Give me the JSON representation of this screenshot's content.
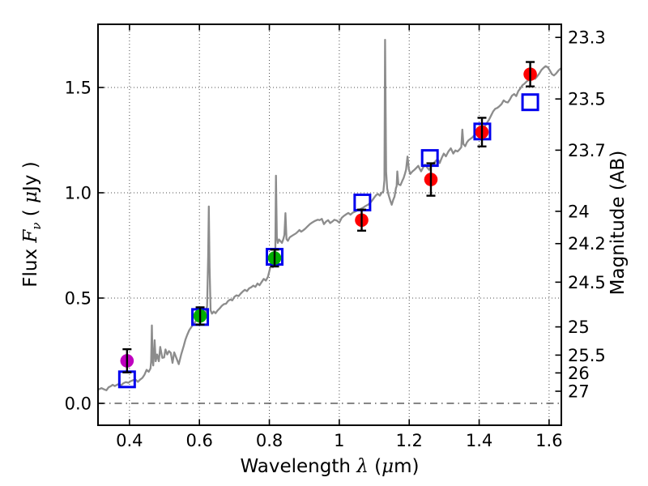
{
  "labels": {
    "x_prefix": "Wavelength ",
    "x_lambda": "λ",
    "x_open": " (",
    "x_mu": "μ",
    "x_close": "m)",
    "y_flux_prefix": "Flux ",
    "y_flux_F": "F",
    "y_flux_nu": "ν",
    "y_flux_open": " ( ",
    "y_flux_mu": "μ",
    "y_flux_close": "Jy )",
    "y_right": "Magnitude (AB)"
  },
  "colors": {
    "spectrum": "#8C8C8C",
    "model_square": "#0000EE",
    "errorbar": "#000000",
    "frame": "#000000",
    "grid": "#4D4D4D"
  },
  "chart_data": {
    "type": "line",
    "title": "",
    "xlabel": "Wavelength λ (μm)",
    "ylabel_left": "Flux Fν (μJy)",
    "ylabel_right": "Magnitude (AB)",
    "xlim": [
      0.31,
      1.635
    ],
    "ylim": [
      -0.104,
      1.8
    ],
    "grid": true,
    "x_ticks": [
      0.4,
      0.6,
      0.8,
      1,
      1.2,
      1.4,
      1.6
    ],
    "x_tick_labels": [
      "0.4",
      "0.6",
      "0.8",
      "1",
      "1.2",
      "1.4",
      "1.6"
    ],
    "y_ticks_flux": [
      0.0,
      0.5,
      1.0,
      1.5
    ],
    "y_tick_labels_flux": [
      "0.0",
      "0.5",
      "1.0",
      "1.5"
    ],
    "mag_ticks": [
      23.3,
      23.5,
      23.7,
      24,
      24.2,
      24.5,
      25,
      25.5,
      26,
      27
    ],
    "mag_tick_labels": [
      "23.3",
      "23.5",
      "23.7",
      "24",
      "24.2",
      "24.5",
      "25",
      "25.5",
      "26",
      "27"
    ],
    "mag_zeropoint_uJy": 23.9,
    "zero_flux_line": true,
    "series": [
      {
        "name": "model-spectrum",
        "type": "line",
        "color": "#8C8C8C",
        "points": [
          [
            0.31,
            0.065
          ],
          [
            0.32,
            0.072
          ],
          [
            0.328,
            0.066
          ],
          [
            0.334,
            0.062
          ],
          [
            0.34,
            0.076
          ],
          [
            0.347,
            0.082
          ],
          [
            0.352,
            0.088
          ],
          [
            0.358,
            0.082
          ],
          [
            0.364,
            0.088
          ],
          [
            0.37,
            0.092
          ],
          [
            0.376,
            0.086
          ],
          [
            0.383,
            0.096
          ],
          [
            0.39,
            0.101
          ],
          [
            0.397,
            0.098
          ],
          [
            0.403,
            0.105
          ],
          [
            0.41,
            0.11
          ],
          [
            0.417,
            0.113
          ],
          [
            0.424,
            0.102
          ],
          [
            0.43,
            0.112
          ],
          [
            0.437,
            0.121
          ],
          [
            0.443,
            0.136
          ],
          [
            0.449,
            0.159
          ],
          [
            0.455,
            0.15
          ],
          [
            0.46,
            0.166
          ],
          [
            0.462,
            0.2
          ],
          [
            0.464,
            0.37
          ],
          [
            0.466,
            0.21
          ],
          [
            0.468,
            0.18
          ],
          [
            0.47,
            0.24
          ],
          [
            0.472,
            0.3
          ],
          [
            0.475,
            0.2
          ],
          [
            0.479,
            0.232
          ],
          [
            0.484,
            0.2
          ],
          [
            0.488,
            0.268
          ],
          [
            0.494,
            0.216
          ],
          [
            0.499,
            0.218
          ],
          [
            0.503,
            0.256
          ],
          [
            0.508,
            0.232
          ],
          [
            0.513,
            0.248
          ],
          [
            0.518,
            0.24
          ],
          [
            0.523,
            0.192
          ],
          [
            0.528,
            0.242
          ],
          [
            0.534,
            0.216
          ],
          [
            0.541,
            0.186
          ],
          [
            0.548,
            0.232
          ],
          [
            0.555,
            0.272
          ],
          [
            0.56,
            0.302
          ],
          [
            0.565,
            0.325
          ],
          [
            0.571,
            0.348
          ],
          [
            0.578,
            0.365
          ],
          [
            0.585,
            0.38
          ],
          [
            0.59,
            0.392
          ],
          [
            0.595,
            0.399
          ],
          [
            0.6,
            0.408
          ],
          [
            0.606,
            0.413
          ],
          [
            0.612,
            0.416
          ],
          [
            0.618,
            0.431
          ],
          [
            0.622,
            0.462
          ],
          [
            0.625,
            0.7
          ],
          [
            0.627,
            0.935
          ],
          [
            0.629,
            0.65
          ],
          [
            0.632,
            0.442
          ],
          [
            0.636,
            0.426
          ],
          [
            0.641,
            0.436
          ],
          [
            0.646,
            0.428
          ],
          [
            0.652,
            0.441
          ],
          [
            0.658,
            0.451
          ],
          [
            0.664,
            0.463
          ],
          [
            0.67,
            0.471
          ],
          [
            0.676,
            0.473
          ],
          [
            0.682,
            0.486
          ],
          [
            0.688,
            0.493
          ],
          [
            0.694,
            0.489
          ],
          [
            0.7,
            0.506
          ],
          [
            0.706,
            0.513
          ],
          [
            0.712,
            0.509
          ],
          [
            0.718,
            0.521
          ],
          [
            0.724,
            0.531
          ],
          [
            0.73,
            0.539
          ],
          [
            0.736,
            0.533
          ],
          [
            0.742,
            0.546
          ],
          [
            0.748,
            0.551
          ],
          [
            0.754,
            0.559
          ],
          [
            0.76,
            0.553
          ],
          [
            0.766,
            0.569
          ],
          [
            0.772,
            0.561
          ],
          [
            0.778,
            0.576
          ],
          [
            0.784,
            0.591
          ],
          [
            0.79,
            0.583
          ],
          [
            0.796,
            0.601
          ],
          [
            0.802,
            0.641
          ],
          [
            0.806,
            0.656
          ],
          [
            0.81,
            0.646
          ],
          [
            0.814,
            0.667
          ],
          [
            0.817,
            0.72
          ],
          [
            0.819,
            1.081
          ],
          [
            0.8215,
            0.79
          ],
          [
            0.824,
            0.762
          ],
          [
            0.828,
            0.778
          ],
          [
            0.832,
            0.77
          ],
          [
            0.836,
            0.762
          ],
          [
            0.84,
            0.78
          ],
          [
            0.843,
            0.8
          ],
          [
            0.846,
            0.903
          ],
          [
            0.849,
            0.78
          ],
          [
            0.853,
            0.772
          ],
          [
            0.858,
            0.788
          ],
          [
            0.864,
            0.795
          ],
          [
            0.87,
            0.801
          ],
          [
            0.876,
            0.807
          ],
          [
            0.882,
            0.816
          ],
          [
            0.886,
            0.823
          ],
          [
            0.891,
            0.815
          ],
          [
            0.897,
            0.822
          ],
          [
            0.903,
            0.83
          ],
          [
            0.909,
            0.84
          ],
          [
            0.916,
            0.851
          ],
          [
            0.923,
            0.859
          ],
          [
            0.93,
            0.866
          ],
          [
            0.938,
            0.872
          ],
          [
            0.944,
            0.87
          ],
          [
            0.95,
            0.876
          ],
          [
            0.956,
            0.851
          ],
          [
            0.962,
            0.863
          ],
          [
            0.968,
            0.87
          ],
          [
            0.974,
            0.856
          ],
          [
            0.98,
            0.863
          ],
          [
            0.986,
            0.872
          ],
          [
            0.993,
            0.868
          ],
          [
            1.0,
            0.858
          ],
          [
            1.007,
            0.881
          ],
          [
            1.014,
            0.891
          ],
          [
            1.02,
            0.898
          ],
          [
            1.026,
            0.904
          ],
          [
            1.032,
            0.896
          ],
          [
            1.039,
            0.906
          ],
          [
            1.045,
            0.91
          ],
          [
            1.052,
            0.916
          ],
          [
            1.06,
            0.922
          ],
          [
            1.068,
            0.929
          ],
          [
            1.076,
            0.938
          ],
          [
            1.083,
            0.944
          ],
          [
            1.09,
            0.955
          ],
          [
            1.096,
            0.968
          ],
          [
            1.101,
            0.98
          ],
          [
            1.106,
            0.99
          ],
          [
            1.111,
            0.994
          ],
          [
            1.116,
            0.986
          ],
          [
            1.121,
            0.999
          ],
          [
            1.126,
            1.006
          ],
          [
            1.129,
            1.06
          ],
          [
            1.131,
            1.726
          ],
          [
            1.134,
            1.1
          ],
          [
            1.137,
            1.02
          ],
          [
            1.141,
            0.99
          ],
          [
            1.146,
            0.962
          ],
          [
            1.15,
            0.943
          ],
          [
            1.154,
            0.966
          ],
          [
            1.158,
            0.982
          ],
          [
            1.162,
            1.022
          ],
          [
            1.164,
            1.032
          ],
          [
            1.166,
            1.101
          ],
          [
            1.169,
            1.041
          ],
          [
            1.175,
            1.036
          ],
          [
            1.18,
            1.056
          ],
          [
            1.184,
            1.07
          ],
          [
            1.188,
            1.091
          ],
          [
            1.191,
            1.109
          ],
          [
            1.195,
            1.172
          ],
          [
            1.199,
            1.111
          ],
          [
            1.203,
            1.089
          ],
          [
            1.209,
            1.101
          ],
          [
            1.215,
            1.109
          ],
          [
            1.221,
            1.119
          ],
          [
            1.226,
            1.128
          ],
          [
            1.23,
            1.113
          ],
          [
            1.234,
            1.102
          ],
          [
            1.24,
            1.121
          ],
          [
            1.245,
            1.134
          ],
          [
            1.251,
            1.121
          ],
          [
            1.257,
            1.109
          ],
          [
            1.264,
            1.128
          ],
          [
            1.27,
            1.141
          ],
          [
            1.276,
            1.151
          ],
          [
            1.281,
            1.16
          ],
          [
            1.287,
            1.141
          ],
          [
            1.293,
            1.166
          ],
          [
            1.299,
            1.186
          ],
          [
            1.305,
            1.173
          ],
          [
            1.312,
            1.196
          ],
          [
            1.319,
            1.211
          ],
          [
            1.326,
            1.186
          ],
          [
            1.332,
            1.201
          ],
          [
            1.338,
            1.196
          ],
          [
            1.344,
            1.206
          ],
          [
            1.349,
            1.216
          ],
          [
            1.352,
            1.3
          ],
          [
            1.355,
            1.231
          ],
          [
            1.36,
            1.221
          ],
          [
            1.365,
            1.239
          ],
          [
            1.37,
            1.25
          ],
          [
            1.375,
            1.256
          ],
          [
            1.381,
            1.263
          ],
          [
            1.386,
            1.273
          ],
          [
            1.392,
            1.288
          ],
          [
            1.398,
            1.271
          ],
          [
            1.404,
            1.283
          ],
          [
            1.41,
            1.301
          ],
          [
            1.416,
            1.316
          ],
          [
            1.422,
            1.331
          ],
          [
            1.428,
            1.346
          ],
          [
            1.434,
            1.366
          ],
          [
            1.44,
            1.386
          ],
          [
            1.446,
            1.399
          ],
          [
            1.452,
            1.403
          ],
          [
            1.458,
            1.411
          ],
          [
            1.464,
            1.421
          ],
          [
            1.47,
            1.439
          ],
          [
            1.476,
            1.431
          ],
          [
            1.482,
            1.429
          ],
          [
            1.488,
            1.443
          ],
          [
            1.494,
            1.461
          ],
          [
            1.5,
            1.469
          ],
          [
            1.506,
            1.459
          ],
          [
            1.512,
            1.483
          ],
          [
            1.518,
            1.496
          ],
          [
            1.524,
            1.511
          ],
          [
            1.53,
            1.519
          ],
          [
            1.536,
            1.529
          ],
          [
            1.542,
            1.536
          ],
          [
            1.548,
            1.546
          ],
          [
            1.554,
            1.553
          ],
          [
            1.56,
            1.541
          ],
          [
            1.566,
            1.553
          ],
          [
            1.572,
            1.566
          ],
          [
            1.578,
            1.583
          ],
          [
            1.584,
            1.593
          ],
          [
            1.59,
            1.601
          ],
          [
            1.596,
            1.596
          ],
          [
            1.602,
            1.581
          ],
          [
            1.608,
            1.564
          ],
          [
            1.614,
            1.557
          ],
          [
            1.62,
            1.566
          ],
          [
            1.626,
            1.579
          ],
          [
            1.632,
            1.589
          ]
        ]
      },
      {
        "name": "model-photometry",
        "type": "scatter",
        "marker": "open-square",
        "color": "#0000EE",
        "points": [
          [
            0.393,
            0.114
          ],
          [
            0.602,
            0.41
          ],
          [
            0.815,
            0.696
          ],
          [
            1.066,
            0.954
          ],
          [
            1.259,
            1.165
          ],
          [
            1.409,
            1.291
          ],
          [
            1.546,
            1.43
          ]
        ]
      },
      {
        "name": "observed-photometry",
        "type": "scatter",
        "marker": "filled-circle-errorbar",
        "points": [
          {
            "x": 0.393,
            "y": 0.202,
            "err": 0.055,
            "color": "#BF00BF"
          },
          {
            "x": 0.602,
            "y": 0.415,
            "err": 0.041,
            "color": "#00AD00"
          },
          {
            "x": 0.815,
            "y": 0.69,
            "err": 0.04,
            "color": "#00AD00"
          },
          {
            "x": 1.064,
            "y": 0.87,
            "err": 0.05,
            "color": "#FF0000"
          },
          {
            "x": 1.262,
            "y": 1.063,
            "err": 0.077,
            "color": "#FF0000"
          },
          {
            "x": 1.408,
            "y": 1.288,
            "err": 0.068,
            "color": "#FF0000"
          },
          {
            "x": 1.546,
            "y": 1.563,
            "err": 0.058,
            "color": "#FF0000"
          }
        ]
      }
    ]
  }
}
